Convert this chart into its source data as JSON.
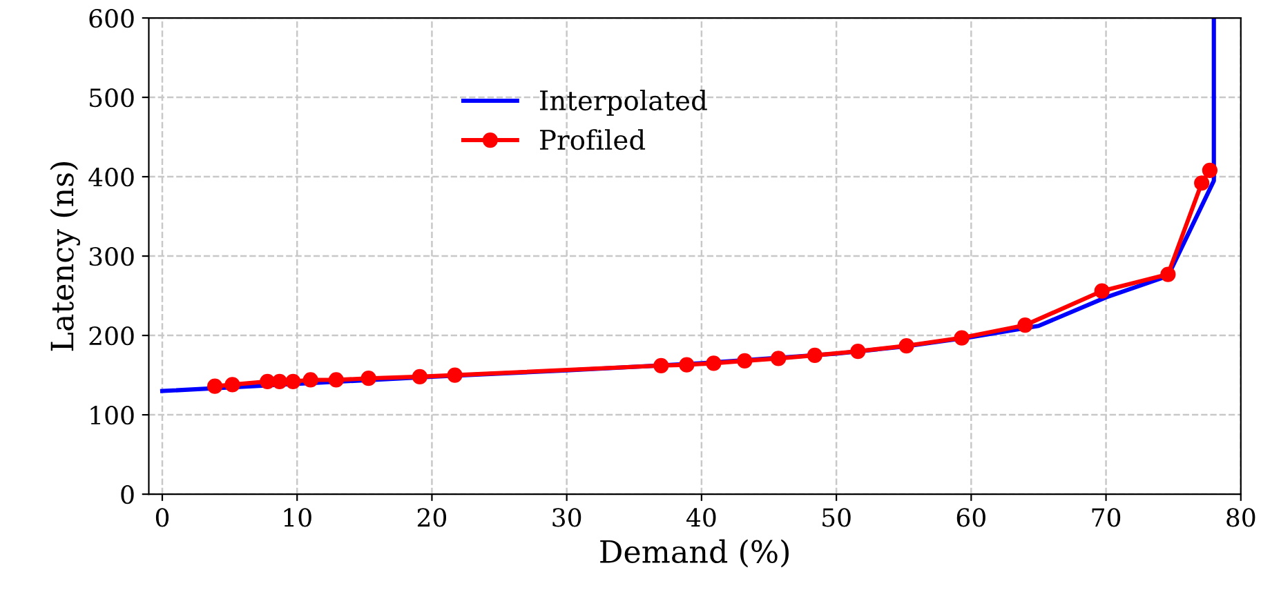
{
  "chart_data": {
    "type": "line",
    "xlabel": "Demand (%)",
    "ylabel": "Latency (ns)",
    "xlim": [
      -1,
      80
    ],
    "ylim": [
      0,
      600
    ],
    "xticks": [
      0,
      10,
      20,
      30,
      40,
      50,
      60,
      70,
      80
    ],
    "yticks": [
      0,
      100,
      200,
      300,
      400,
      500,
      600
    ],
    "grid": true,
    "legend": "upper center",
    "series": [
      {
        "name": "Interpolated",
        "color": "#0000ff",
        "marker": "none",
        "x": [
          0,
          10,
          20,
          30,
          40,
          50,
          55,
          60,
          65,
          70,
          74.6,
          78,
          78
        ],
        "values": [
          130,
          139,
          148,
          156,
          165,
          177,
          186,
          198,
          212,
          248,
          275,
          395,
          600
        ]
      },
      {
        "name": "Profiled",
        "color": "#ff0000",
        "marker": "circle",
        "x": [
          3.9,
          5.2,
          7.8,
          8.7,
          9.7,
          11.0,
          12.9,
          15.3,
          19.1,
          21.7,
          37.0,
          38.9,
          40.9,
          43.2,
          45.7,
          48.4,
          51.6,
          55.2,
          59.3,
          64.0,
          69.7,
          74.6,
          77.1,
          77.7
        ],
        "values": [
          136,
          138,
          142,
          142,
          142,
          144,
          144,
          146,
          148,
          150,
          162,
          163,
          165,
          168,
          171,
          175,
          180,
          187,
          197,
          213,
          256,
          277,
          392,
          408
        ]
      }
    ]
  }
}
